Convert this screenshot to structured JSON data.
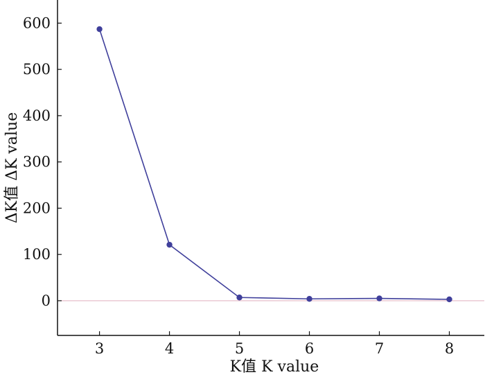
{
  "chart_data": {
    "type": "line",
    "xlabel": "K值  K value",
    "ylabel": "ΔK值  ΔK value",
    "x": [
      3,
      4,
      5,
      6,
      7,
      8
    ],
    "series": [
      {
        "values": [
          587,
          121,
          7,
          4,
          5,
          3
        ]
      }
    ],
    "xlim": [
      2.4,
      8.5
    ],
    "ylim": [
      -75,
      650
    ],
    "x_ticks": [
      "3",
      "4",
      "5",
      "6",
      "7",
      "8"
    ],
    "y_ticks": [
      "0",
      "100",
      "200",
      "300",
      "400",
      "500",
      "600"
    ],
    "reference_line": 0,
    "grid": false,
    "colors": {
      "series": "#3f3f9b",
      "zero_line": "#e3b6c3",
      "axes": "#111111"
    }
  }
}
